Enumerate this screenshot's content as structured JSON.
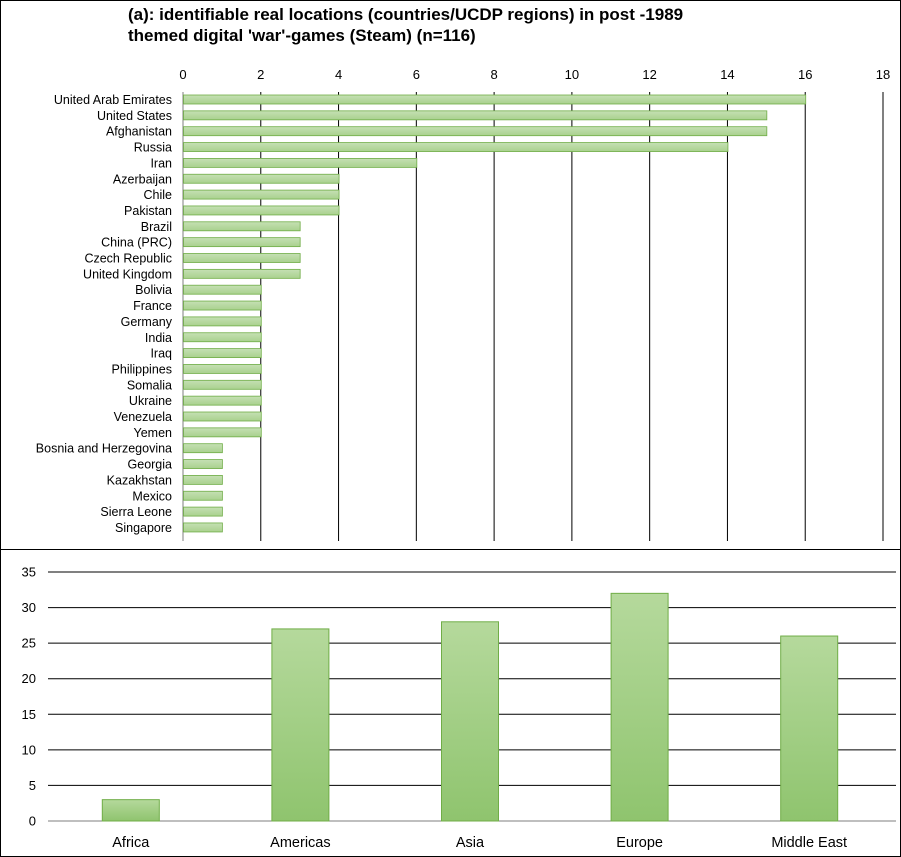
{
  "chart_data": [
    {
      "type": "bar",
      "orientation": "horizontal",
      "title_line1": "(a): identifiable real locations (countries/UCDP regions) in post  -1989",
      "title_line2": "themed digital 'war'-games (Steam) (n=116)",
      "categories": [
        "United Arab Emirates",
        "United States",
        "Afghanistan",
        "Russia",
        "Iran",
        "Azerbaijan",
        "Chile",
        "Pakistan",
        "Brazil",
        "China (PRC)",
        "Czech Republic",
        "United Kingdom",
        "Bolivia",
        "France",
        "Germany",
        "India",
        "Iraq",
        "Philippines",
        "Somalia",
        "Ukraine",
        "Venezuela",
        "Yemen",
        "Bosnia and Herzegovina",
        "Georgia",
        "Kazakhstan",
        "Mexico",
        "Sierra Leone",
        "Singapore"
      ],
      "values": [
        16,
        15,
        15,
        14,
        6,
        4,
        4,
        4,
        3,
        3,
        3,
        3,
        2,
        2,
        2,
        2,
        2,
        2,
        2,
        2,
        2,
        2,
        1,
        1,
        1,
        1,
        1,
        1
      ],
      "xlim": [
        0,
        18
      ],
      "xticks": [
        "0",
        "2",
        "4",
        "6",
        "8",
        "10",
        "12",
        "14",
        "16",
        "18"
      ],
      "grid": "vertical",
      "legend": "none",
      "bar_color": "#a9d18e"
    },
    {
      "type": "bar",
      "orientation": "vertical",
      "categories": [
        "Africa",
        "Americas",
        "Asia",
        "Europe",
        "Middle East"
      ],
      "values": [
        3,
        27,
        28,
        32,
        26
      ],
      "ylim": [
        0,
        35
      ],
      "yticks": [
        "0",
        "5",
        "10",
        "15",
        "20",
        "25",
        "30",
        "35"
      ],
      "grid": "horizontal",
      "legend": "none",
      "bar_color": "#a9d18e"
    }
  ]
}
